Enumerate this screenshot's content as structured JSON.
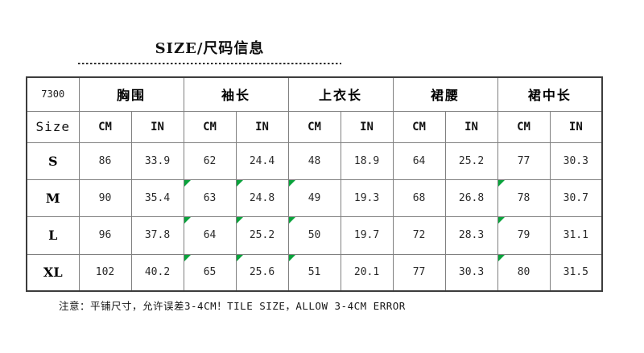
{
  "page": {
    "title": "SIZE/尺码信息",
    "note": "注意：平铺尺寸，允许误差3-4CM！TILE SIZE，ALLOW 3-4CM ERROR"
  },
  "colors": {
    "header_bg": "#EDE9DC",
    "grid_line": "#808080",
    "outer_border": "#3C3C3C",
    "flag_green": "#0AA33C"
  },
  "table": {
    "model_number": "7300",
    "size_label": "Size",
    "groups": [
      "胸围",
      "袖长",
      "上衣长",
      "裙腰",
      "裙中长"
    ],
    "unit_headers": [
      "CM",
      "IN",
      "CM",
      "IN",
      "CM",
      "IN",
      "CM",
      "IN",
      "CM",
      "IN"
    ],
    "rows": [
      {
        "size": "S",
        "values": [
          "86",
          "33.9",
          "62",
          "24.4",
          "48",
          "18.9",
          "64",
          "25.2",
          "77",
          "30.3"
        ],
        "flagged": []
      },
      {
        "size": "M",
        "values": [
          "90",
          "35.4",
          "63",
          "24.8",
          "49",
          "19.3",
          "68",
          "26.8",
          "78",
          "30.7"
        ],
        "flagged": [
          2,
          3,
          4,
          8
        ]
      },
      {
        "size": "L",
        "values": [
          "96",
          "37.8",
          "64",
          "25.2",
          "50",
          "19.7",
          "72",
          "28.3",
          "79",
          "31.1"
        ],
        "flagged": [
          2,
          3,
          4,
          8
        ]
      },
      {
        "size": "XL",
        "values": [
          "102",
          "40.2",
          "65",
          "25.6",
          "51",
          "20.1",
          "77",
          "30.3",
          "80",
          "31.5"
        ],
        "flagged": [
          2,
          3,
          4,
          8
        ]
      }
    ]
  }
}
